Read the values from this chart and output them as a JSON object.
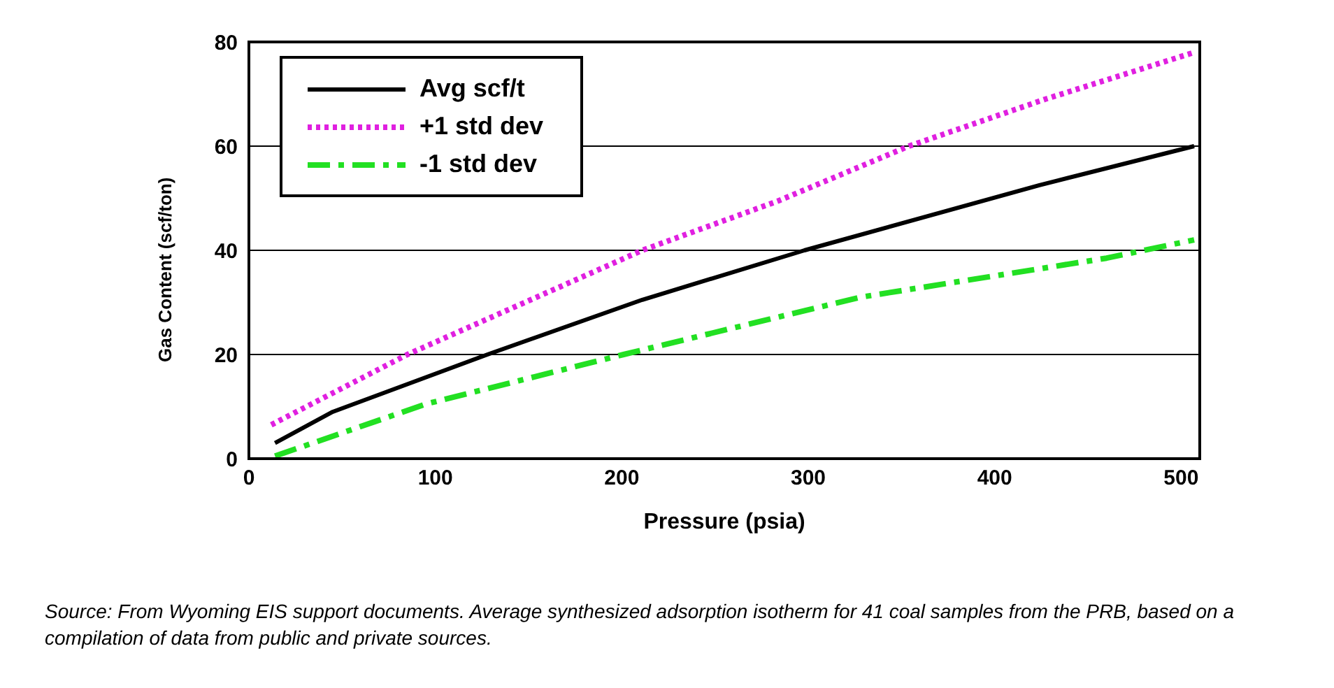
{
  "chart_data": {
    "type": "line",
    "xlabel": "Pressure (psia)",
    "ylabel": "Gas Content (scf/ton)",
    "xlim": [
      0,
      510
    ],
    "xticks": [
      0,
      100,
      200,
      300,
      400,
      500
    ],
    "ylim": [
      0,
      80
    ],
    "yticks": [
      0,
      20,
      40,
      60,
      80
    ],
    "grid": "y",
    "legend": "top left",
    "marker": "none",
    "series": [
      {
        "name": "Avg scf/t",
        "color": "#000000",
        "line_style": "solid",
        "x": [
          14,
          45,
          128,
          211,
          298,
          424,
          507
        ],
        "values": [
          3,
          9,
          20,
          30.5,
          40,
          52.5,
          60
        ]
      },
      {
        "name": "+1 std dev",
        "color": "#e020e0",
        "line_style": "dotted",
        "x": [
          12,
          85,
          211,
          284,
          354,
          427,
          507
        ],
        "values": [
          6.5,
          20,
          40,
          49.5,
          60,
          69,
          78
        ]
      },
      {
        "name": "-1 std dev",
        "color": "#22e022",
        "line_style": "dashed",
        "x": [
          14,
          95,
          201,
          328,
          460,
          507
        ],
        "values": [
          0.5,
          10.5,
          20,
          31,
          38.5,
          42
        ]
      }
    ],
    "annotations": [
      "Source: From Wyoming EIS support documents.  Average synthesized adsorption isotherm for 41 coal samples from the PRB, based on a compilation of data from public and private sources."
    ]
  }
}
